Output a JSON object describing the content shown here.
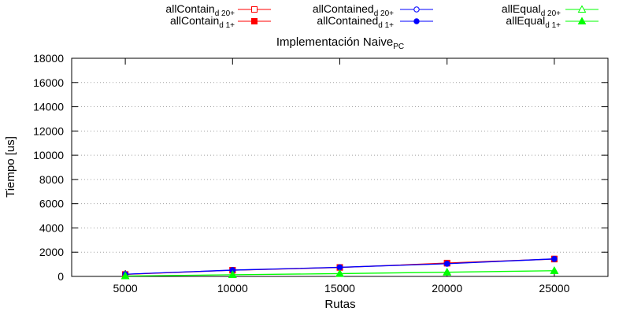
{
  "chart_data": {
    "type": "line",
    "title": "Implementación Naive",
    "title_subscript": "PC",
    "xlabel": "Rutas",
    "ylabel": "Tiempo [us]",
    "x": [
      5000,
      10000,
      15000,
      20000,
      25000
    ],
    "xlim": [
      2500,
      27500
    ],
    "ylim": [
      0,
      18000
    ],
    "xticks": [
      5000,
      10000,
      15000,
      20000,
      25000
    ],
    "yticks": [
      0,
      2000,
      4000,
      6000,
      8000,
      10000,
      12000,
      14000,
      16000,
      18000
    ],
    "grid": true,
    "legend_position": "top",
    "series": [
      {
        "name": "allContain",
        "subscript": "d 20+",
        "color": "#ff0000",
        "marker": "open-square",
        "values": [
          160,
          500,
          730,
          1080,
          1420
        ]
      },
      {
        "name": "allContain",
        "subscript": "d 1+",
        "color": "#ff0000",
        "marker": "filled-square",
        "values": [
          170,
          520,
          750,
          1110,
          1450
        ]
      },
      {
        "name": "allContained",
        "subscript": "d 20+",
        "color": "#0000ff",
        "marker": "open-circle",
        "values": [
          180,
          510,
          740,
          1040,
          1430
        ]
      },
      {
        "name": "allContained",
        "subscript": "d 1+",
        "color": "#0000ff",
        "marker": "filled-circle",
        "values": [
          190,
          530,
          760,
          1060,
          1460
        ]
      },
      {
        "name": "allEqual",
        "subscript": "d 20+",
        "color": "#00ff00",
        "marker": "open-triangle",
        "values": [
          30,
          130,
          220,
          330,
          460
        ]
      },
      {
        "name": "allEqual",
        "subscript": "d 1+",
        "color": "#00ff00",
        "marker": "filled-triangle",
        "values": [
          40,
          150,
          240,
          360,
          480
        ]
      }
    ]
  }
}
